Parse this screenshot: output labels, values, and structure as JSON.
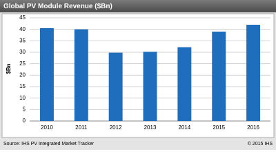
{
  "chart_data": {
    "type": "bar",
    "title": "Global PV Module Revenue ($Bn)",
    "y_label": "$Bn",
    "categories": [
      "2010",
      "2011",
      "2012",
      "2013",
      "2014",
      "2015",
      "2016"
    ],
    "values": [
      40.5,
      40,
      29.8,
      30.2,
      32.2,
      39,
      42
    ],
    "color": "#1f6dbd",
    "ylim": [
      0,
      45
    ],
    "yticks": [
      0,
      5,
      10,
      15,
      20,
      25,
      30,
      35,
      40,
      45
    ],
    "grid": true,
    "source": "Source: IHS PV Integrated Market Tracker",
    "copyright": "© 2015 IHS"
  }
}
